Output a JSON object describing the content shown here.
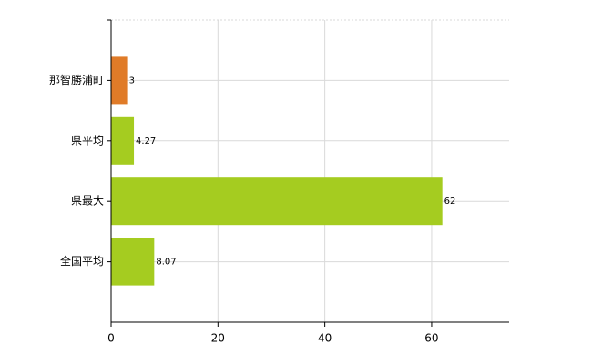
{
  "chart_data": {
    "type": "bar",
    "orientation": "horizontal",
    "categories": [
      "那智勝浦町",
      "県平均",
      "県最大",
      "全国平均"
    ],
    "values": [
      3,
      4.27,
      62,
      8.07
    ],
    "colors": [
      "#e07b28",
      "#a5cc20",
      "#a5cc20",
      "#a5cc20"
    ],
    "xlim": [
      0,
      74.5
    ],
    "xticks": [
      0,
      20,
      40,
      60
    ],
    "grid": true
  }
}
